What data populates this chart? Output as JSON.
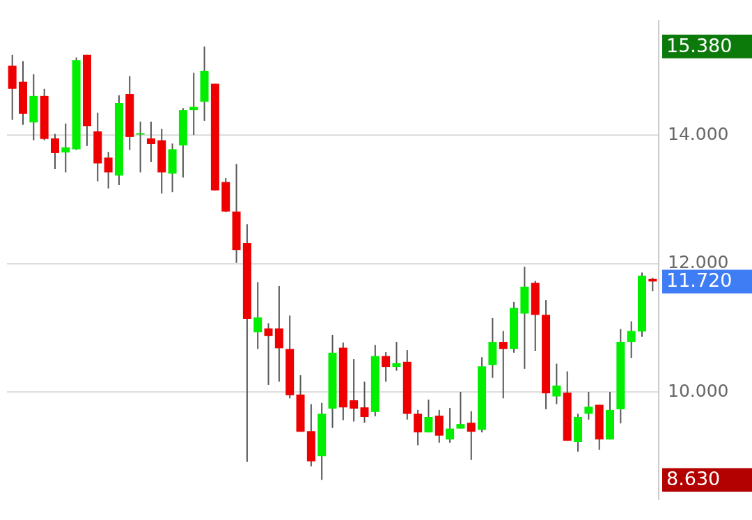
{
  "chart_data": {
    "type": "candlestick",
    "categories": [
      null,
      null,
      null,
      null,
      null,
      null,
      null,
      null,
      null,
      null,
      null,
      null,
      null,
      null,
      null,
      null,
      null,
      null,
      null,
      null,
      null,
      null,
      null,
      null,
      null,
      null,
      null,
      null,
      null,
      null,
      null,
      null,
      null,
      null,
      null,
      null,
      null,
      null,
      null,
      null,
      null,
      null,
      null,
      null,
      null,
      null,
      null,
      null,
      null,
      null,
      null,
      null,
      null,
      null,
      null,
      null,
      null,
      null,
      null,
      null,
      null
    ],
    "ohlc": [
      [
        15.08,
        15.25,
        14.24,
        14.72
      ],
      [
        14.83,
        15.15,
        14.16,
        14.33
      ],
      [
        14.2,
        14.95,
        13.92,
        14.61
      ],
      [
        14.61,
        14.72,
        13.92,
        13.94
      ],
      [
        13.95,
        14.02,
        13.47,
        13.72
      ],
      [
        13.73,
        14.18,
        13.42,
        13.81
      ],
      [
        13.78,
        15.21,
        13.77,
        15.17
      ],
      [
        15.25,
        15.25,
        13.83,
        14.14
      ],
      [
        14.06,
        14.35,
        13.28,
        13.56
      ],
      [
        13.65,
        13.74,
        13.17,
        13.42
      ],
      [
        13.37,
        14.62,
        13.22,
        14.5
      ],
      [
        14.64,
        14.92,
        13.77,
        13.97
      ],
      [
        14.02,
        14.21,
        13.42,
        14.03
      ],
      [
        13.95,
        14.21,
        13.58,
        13.86
      ],
      [
        13.92,
        14.1,
        13.09,
        13.42
      ],
      [
        13.4,
        13.87,
        13.11,
        13.78
      ],
      [
        13.84,
        14.42,
        13.34,
        14.39
      ],
      [
        14.39,
        14.97,
        14.0,
        14.44
      ],
      [
        14.52,
        15.38,
        14.22,
        15.0
      ],
      [
        14.8,
        14.8,
        13.14,
        13.14
      ],
      [
        13.27,
        13.33,
        12.8,
        12.81
      ],
      [
        12.81,
        13.55,
        12.01,
        12.21
      ],
      [
        12.32,
        12.61,
        8.91,
        11.14
      ],
      [
        10.93,
        11.71,
        10.67,
        11.16
      ],
      [
        10.99,
        11.07,
        10.11,
        10.87
      ],
      [
        10.99,
        11.65,
        10.16,
        10.68
      ],
      [
        10.67,
        11.19,
        9.9,
        9.95
      ],
      [
        9.96,
        10.26,
        9.38,
        9.38
      ],
      [
        9.39,
        9.81,
        8.84,
        8.92
      ],
      [
        9.0,
        9.83,
        8.63,
        9.66
      ],
      [
        9.74,
        10.89,
        9.44,
        10.61
      ],
      [
        10.69,
        10.77,
        9.56,
        9.76
      ],
      [
        9.87,
        10.51,
        9.54,
        9.74
      ],
      [
        9.76,
        10.16,
        9.52,
        9.61
      ],
      [
        9.69,
        10.73,
        9.62,
        10.56
      ],
      [
        10.56,
        10.62,
        10.16,
        10.39
      ],
      [
        10.39,
        10.78,
        10.33,
        10.45
      ],
      [
        10.47,
        10.65,
        9.57,
        9.66
      ],
      [
        9.66,
        9.72,
        9.17,
        9.37
      ],
      [
        9.37,
        9.88,
        9.37,
        9.61
      ],
      [
        9.63,
        9.72,
        9.21,
        9.32
      ],
      [
        9.26,
        9.75,
        9.21,
        9.43
      ],
      [
        9.43,
        10.0,
        9.43,
        9.5
      ],
      [
        9.52,
        9.7,
        8.94,
        9.38
      ],
      [
        9.41,
        10.54,
        9.37,
        10.4
      ],
      [
        10.42,
        11.15,
        10.22,
        10.78
      ],
      [
        10.78,
        10.95,
        9.9,
        10.67
      ],
      [
        10.67,
        11.4,
        10.61,
        11.31
      ],
      [
        11.22,
        11.95,
        10.36,
        11.64
      ],
      [
        11.7,
        11.73,
        10.64,
        11.2
      ],
      [
        11.2,
        11.43,
        9.73,
        9.98
      ],
      [
        9.93,
        10.44,
        9.81,
        10.1
      ],
      [
        9.99,
        10.32,
        9.24,
        9.24
      ],
      [
        9.22,
        9.66,
        9.07,
        9.61
      ],
      [
        9.66,
        10.0,
        9.57,
        9.77
      ],
      [
        9.8,
        9.8,
        9.1,
        9.26
      ],
      [
        9.26,
        10.0,
        9.26,
        9.72
      ],
      [
        9.73,
        10.98,
        9.51,
        10.78
      ],
      [
        10.78,
        11.1,
        10.53,
        10.95
      ],
      [
        10.94,
        11.86,
        10.86,
        11.81
      ],
      [
        11.76,
        11.78,
        11.57,
        11.72
      ]
    ],
    "ylim": [
      8.32,
      15.79
    ],
    "yticks": [
      {
        "value": 10,
        "label": "10.000"
      },
      {
        "value": 12,
        "label": "12.000"
      },
      {
        "value": 14,
        "label": "14.000"
      }
    ],
    "grid": "y",
    "tick_labels": "y",
    "annotations": [
      "15.380",
      "11.720",
      "8.630"
    ]
  }
}
